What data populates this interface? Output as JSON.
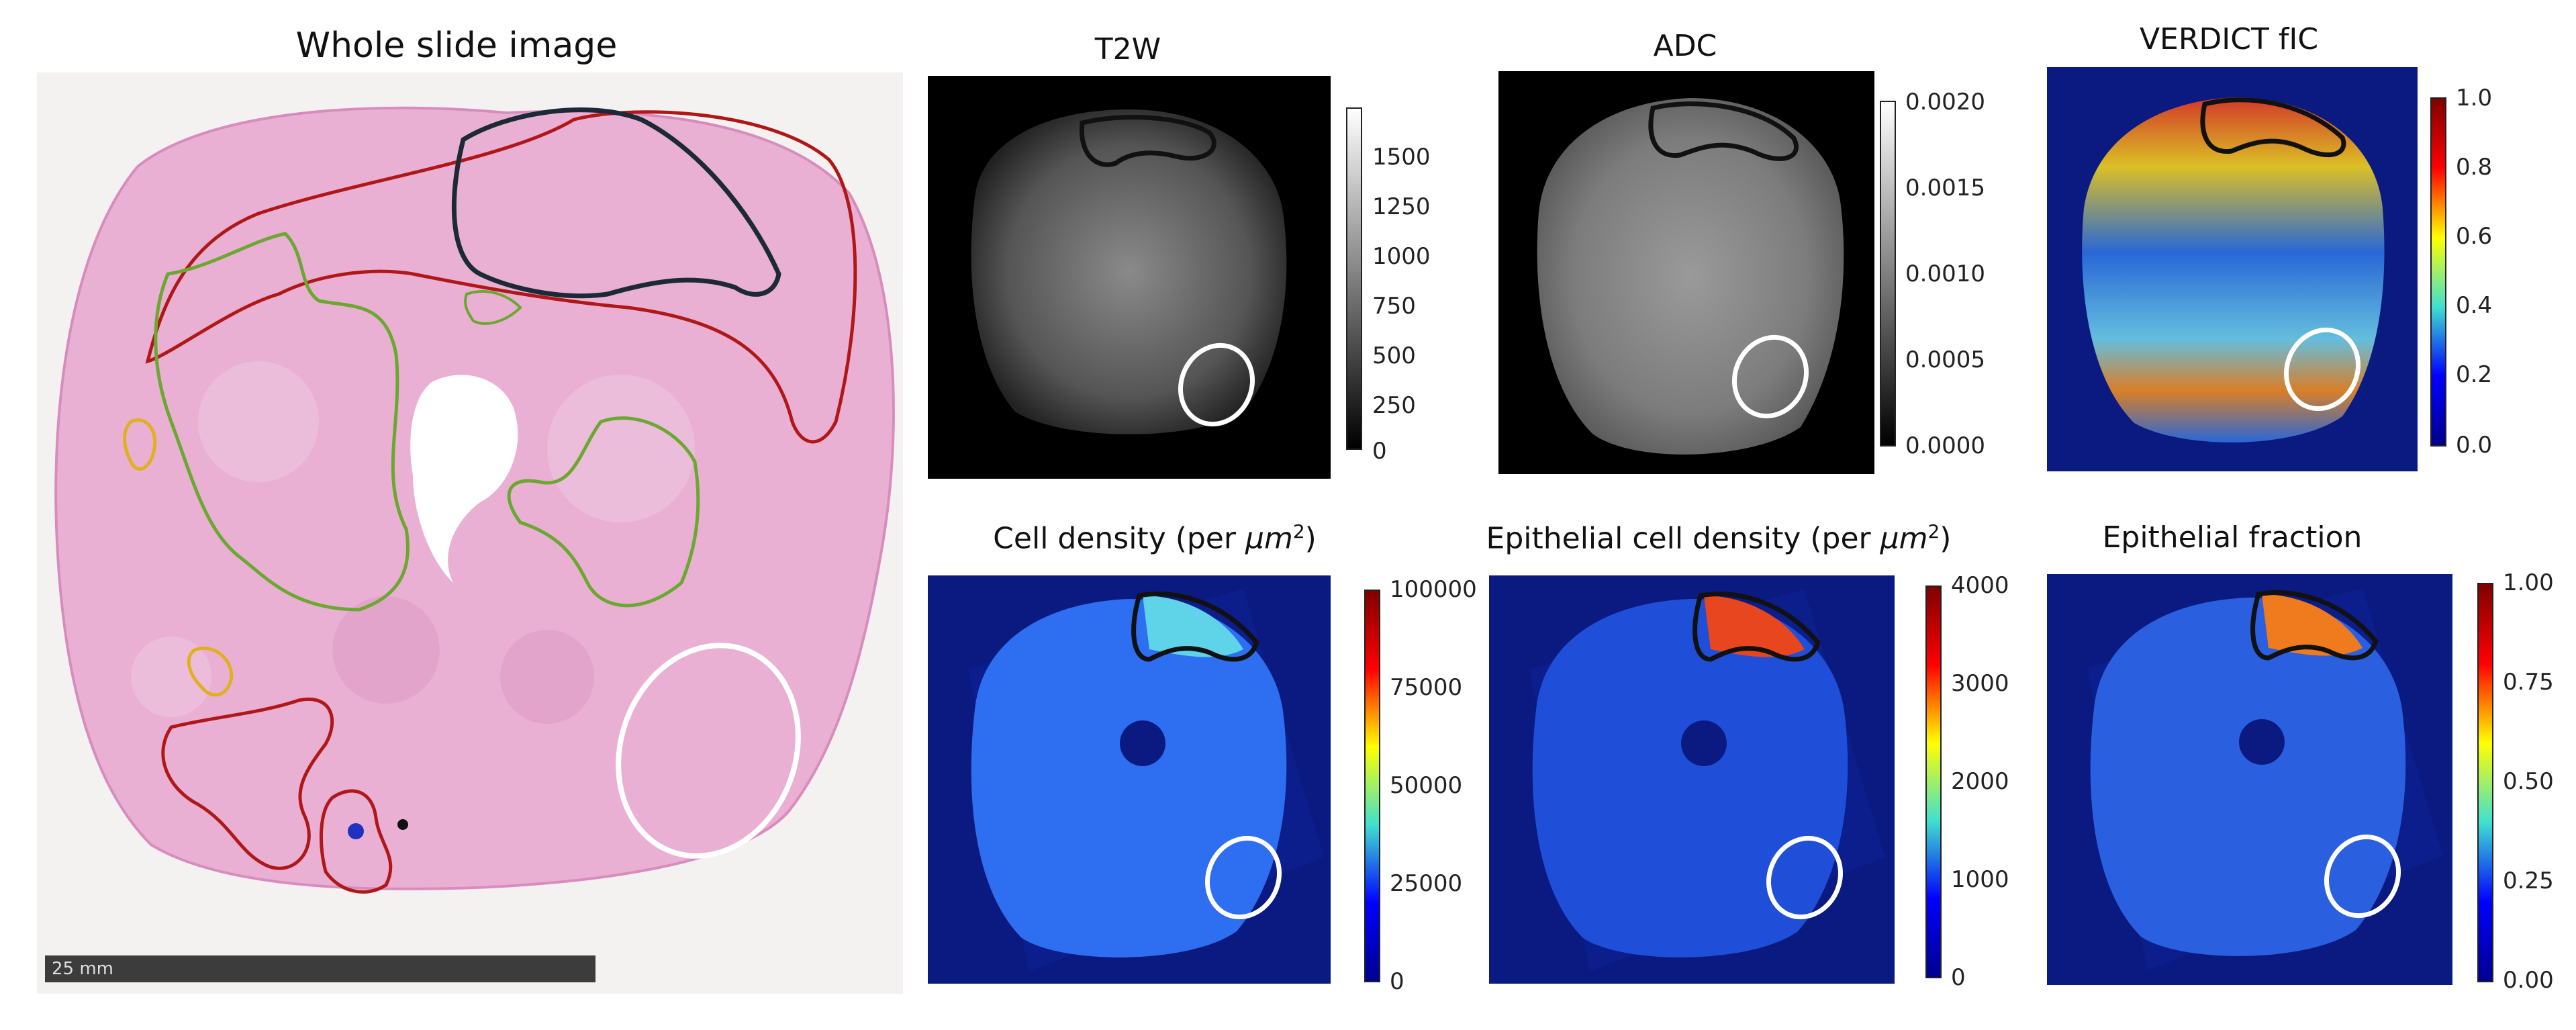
{
  "panels": {
    "wsi": {
      "title": "Whole slide image",
      "scalebar": "25 mm"
    },
    "t2w": {
      "title": "T2W",
      "ticks": [
        "1500",
        "1250",
        "1000",
        "750",
        "500",
        "250",
        "0"
      ]
    },
    "adc": {
      "title": "ADC",
      "ticks": [
        "0.0020",
        "0.0015",
        "0.0010",
        "0.0005",
        "0.0000"
      ]
    },
    "verdict": {
      "title": "VERDICT fIC",
      "ticks": [
        "1.0",
        "0.8",
        "0.6",
        "0.4",
        "0.2",
        "0.0"
      ]
    },
    "cell_density": {
      "title_text": "Cell density (per ",
      "title_unit": "μm",
      "title_sup": "2",
      "title_close": ")",
      "ticks": [
        "100000",
        "75000",
        "50000",
        "25000",
        "0"
      ]
    },
    "epi_density": {
      "title_text": "Epithelial cell density (per ",
      "title_unit": "μm",
      "title_sup": "2",
      "title_close": ")",
      "ticks": [
        "4000",
        "3000",
        "2000",
        "1000",
        "0"
      ]
    },
    "epi_fraction": {
      "title": "Epithelial fraction",
      "ticks": [
        "1.00",
        "0.75",
        "0.50",
        "0.25",
        "0.00"
      ]
    }
  },
  "colors": {
    "tissue_pink": "#e8a6cc",
    "annotation_red": "#b01818",
    "annotation_green": "#6aa830",
    "annotation_yellow": "#e0b020",
    "roi_white": "#ffffff",
    "roi_black": "#111111",
    "jet_background": "#0b1a80"
  }
}
